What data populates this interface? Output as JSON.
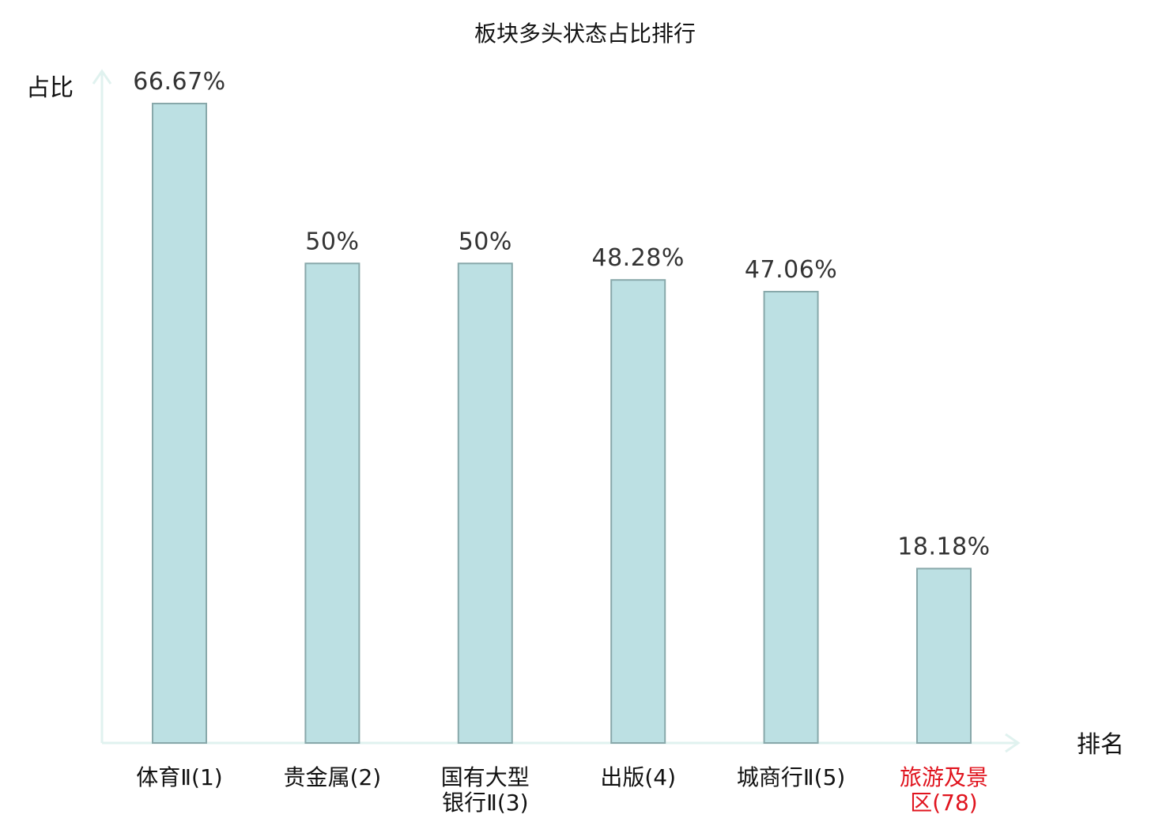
{
  "chart_data": {
    "type": "bar",
    "title": "板块多头状态占比排行",
    "xlabel": "排名",
    "ylabel": "占比",
    "categories": [
      [
        "体育Ⅱ(1)"
      ],
      [
        "贵金属(2)"
      ],
      [
        "国有大型",
        "银行Ⅱ(3)"
      ],
      [
        "出版(4)"
      ],
      [
        "城商行Ⅱ(5)"
      ],
      [
        "旅游及景",
        "区(78)"
      ]
    ],
    "values": [
      66.67,
      50,
      50,
      48.28,
      47.06,
      18.18
    ],
    "value_labels": [
      "66.67%",
      "50%",
      "50%",
      "48.28%",
      "47.06%",
      "18.18%"
    ],
    "highlight_index": 5,
    "ylim": [
      0,
      70
    ],
    "grid": false,
    "colors": {
      "bar_fill": "#bce0e3",
      "bar_stroke": "#88a8aa",
      "axis": "#e0f2ef",
      "label": "#111111",
      "value_label": "#333333",
      "highlight": "#e0141e"
    }
  }
}
